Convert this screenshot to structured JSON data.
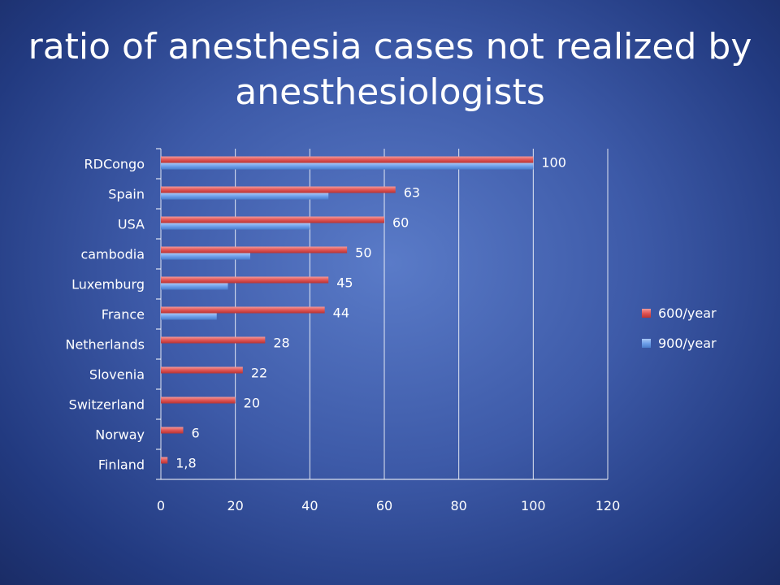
{
  "chart_data": {
    "type": "bar",
    "orientation": "horizontal",
    "title": "ratio of anesthesia cases not realized by anesthesiologists",
    "categories": [
      "RDCongo",
      "Spain",
      "USA",
      "cambodia",
      "Luxemburg",
      "France",
      "Netherlands",
      "Slovenia",
      "Switzerland",
      "Norway",
      "Finland"
    ],
    "series": [
      {
        "name": "600/year",
        "color": "#e05555",
        "values": [
          100,
          63,
          60,
          50,
          45,
          44,
          28,
          22,
          20,
          6,
          1.8
        ],
        "labels": [
          "100",
          "63",
          "60",
          "50",
          "45",
          "44",
          "28",
          "22",
          "20",
          "6",
          "1,8"
        ]
      },
      {
        "name": "900/year",
        "color": "#6fa0ea",
        "values": [
          100,
          45,
          40,
          24,
          18,
          15,
          null,
          null,
          null,
          null,
          null
        ]
      }
    ],
    "xlim": [
      0,
      120
    ],
    "xticks": [
      "0",
      "20",
      "40",
      "60",
      "80",
      "100",
      "120"
    ],
    "grid": true,
    "legend_position": "right"
  }
}
